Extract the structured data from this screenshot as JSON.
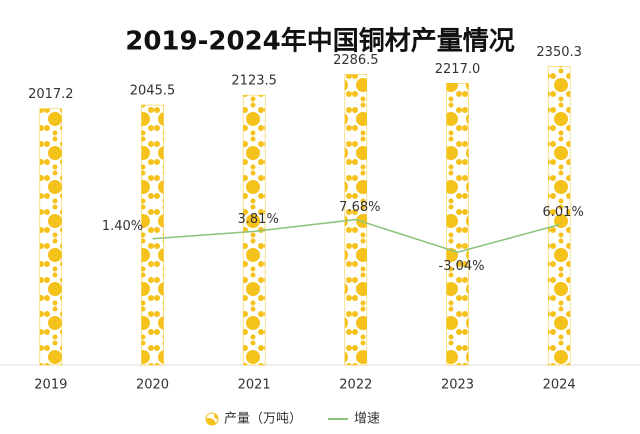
{
  "chart_data": {
    "type": "bar-line",
    "title": "2019-2024年中国铜材产量情况",
    "categories": [
      "2019",
      "2020",
      "2021",
      "2022",
      "2023",
      "2024"
    ],
    "series": [
      {
        "name": "产量（万吨）",
        "type": "bar",
        "color": "#f5c21b",
        "values": [
          2017.2,
          2045.5,
          2123.5,
          2286.5,
          2217.0,
          2350.3
        ],
        "value_labels": [
          "2017.2",
          "2045.5",
          "2123.5",
          "2286.5",
          "2217.0",
          "2350.3"
        ]
      },
      {
        "name": "增速",
        "type": "line",
        "axis": "y2",
        "color": "#8cc37a",
        "values": [
          null,
          1.4,
          3.81,
          7.68,
          -3.04,
          6.01
        ],
        "value_labels": [
          null,
          "1.40%",
          "3.81%",
          "7.68%",
          "-3.04%",
          "6.01%"
        ]
      }
    ],
    "ylim": [
      0,
      2400
    ],
    "y2lim": [
      -40,
      60
    ]
  }
}
